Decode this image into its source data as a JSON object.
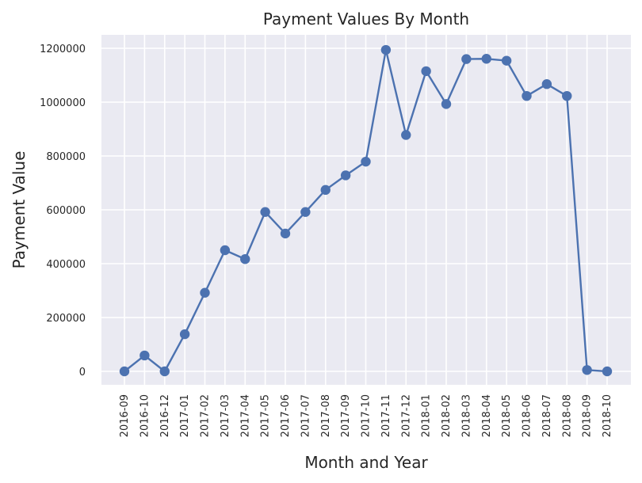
{
  "chart_data": {
    "type": "line",
    "title": "Payment Values By Month",
    "xlabel": "Month and Year",
    "ylabel": "Payment Value",
    "categories": [
      "2016-09",
      "2016-10",
      "2016-12",
      "2017-01",
      "2017-02",
      "2017-03",
      "2017-04",
      "2017-05",
      "2017-06",
      "2017-07",
      "2017-08",
      "2017-09",
      "2017-10",
      "2017-11",
      "2017-12",
      "2018-01",
      "2018-02",
      "2018-03",
      "2018-04",
      "2018-05",
      "2018-06",
      "2018-07",
      "2018-08",
      "2018-09",
      "2018-10"
    ],
    "series": [
      {
        "values": [
          0,
          59000,
          0,
          138000,
          292000,
          450000,
          417000,
          592000,
          512000,
          592000,
          674000,
          728000,
          779000,
          1194000,
          878000,
          1115000,
          993000,
          1160000,
          1161000,
          1154000,
          1023000,
          1067000,
          1023000,
          5000,
          0
        ],
        "color": "#4c72b0"
      }
    ],
    "ylim": [
      -50000,
      1250000
    ],
    "yticks": [
      0,
      200000,
      400000,
      600000,
      800000,
      1000000,
      1200000
    ],
    "ytick_labels": [
      "0",
      "200000",
      "400000",
      "600000",
      "800000",
      "1000000",
      "1200000"
    ],
    "grid": true,
    "background": "#eaeaf2",
    "grid_color": "#ffffff"
  }
}
